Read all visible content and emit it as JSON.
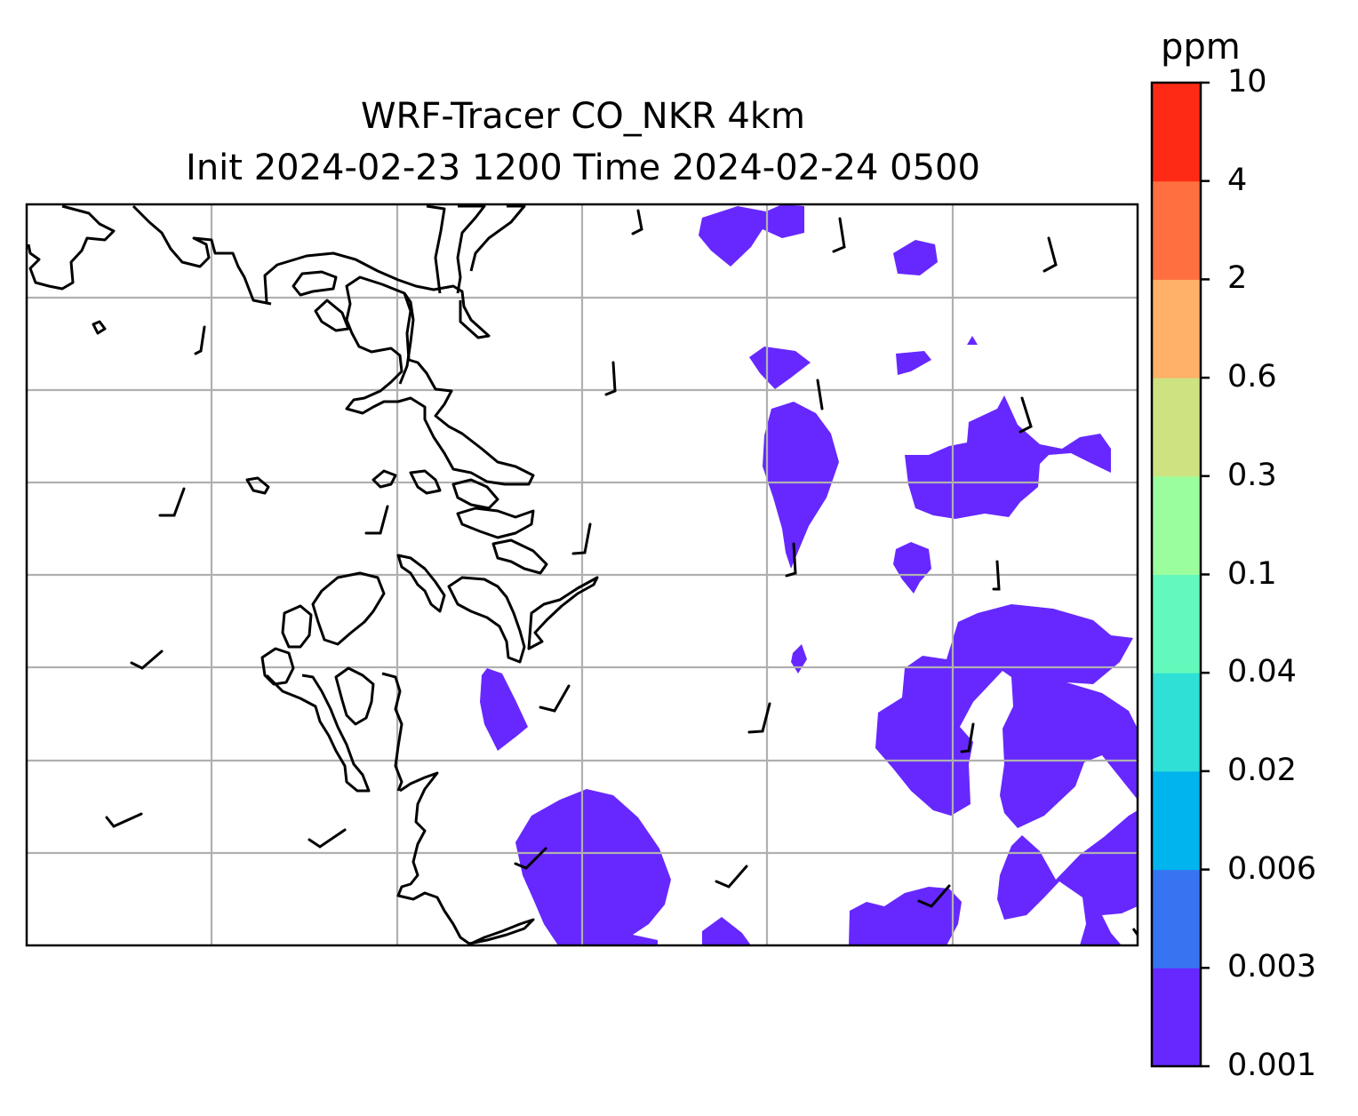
{
  "title": {
    "line1": "WRF-Tracer CO_NKR 4km",
    "line2": "Init 2024-02-23 1200 Time 2024-02-24 0500"
  },
  "colorbar": {
    "unit": "ppm",
    "levels": [
      "0.001",
      "0.003",
      "0.006",
      "0.02",
      "0.04",
      "0.1",
      "0.3",
      "0.6",
      "2",
      "4",
      "10"
    ],
    "colors": [
      "#6628ff",
      "#3674f2",
      "#00b4ed",
      "#2fe0d7",
      "#64f9bc",
      "#9bfe9d",
      "#cee282",
      "#feb167",
      "#ff6f3f",
      "#ff2a16"
    ]
  },
  "map": {
    "fill_color": "#6628ff",
    "coastline_color": "#000000",
    "gridline_color": "#b0b0b0",
    "wind_barbs": true
  }
}
